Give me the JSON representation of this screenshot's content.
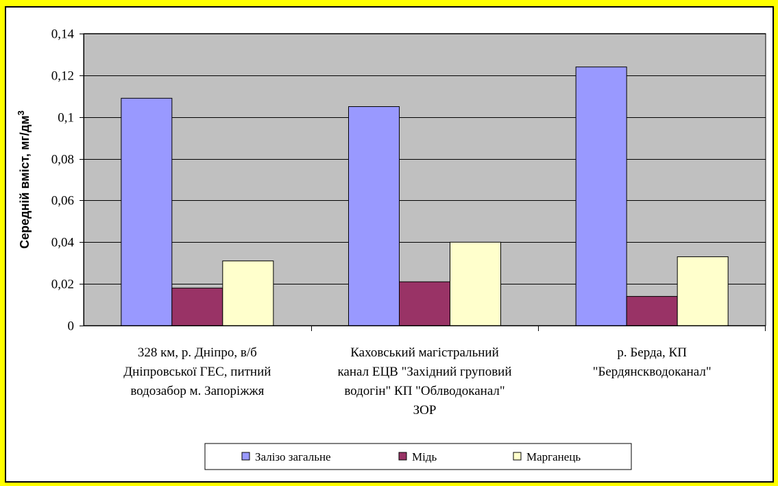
{
  "chart_data": {
    "type": "bar",
    "title": "",
    "xlabel": "",
    "ylabel": "Середній вміст, мг/дм",
    "ylabel_superscript": "3",
    "ylim": [
      0,
      0.14
    ],
    "yticks": [
      "0",
      "0,02",
      "0,04",
      "0,06",
      "0,08",
      "0,1",
      "0,12",
      "0,14"
    ],
    "grid": true,
    "legend_position": "bottom",
    "categories": [
      [
        "328 км, р. Дніпро, в/б",
        "Дніпровської ГЕС, питний",
        "водозабор м. Запоріжжя"
      ],
      [
        "Каховський магістральний",
        "канал ЕЦВ \"Західний груповий",
        "водогін\" КП \"Облводоканал\"",
        "ЗОР"
      ],
      [
        "р. Берда, КП",
        "\"Бердянскводоканал\""
      ]
    ],
    "series": [
      {
        "name": "Залізо загальне",
        "color": "#9999ff",
        "values": [
          0.109,
          0.105,
          0.124
        ]
      },
      {
        "name": "Мідь",
        "color": "#993366",
        "values": [
          0.018,
          0.021,
          0.014
        ]
      },
      {
        "name": "Марганець",
        "color": "#ffffcc",
        "values": [
          0.031,
          0.04,
          0.033
        ]
      }
    ],
    "colors": {
      "frame": "#ffff00",
      "plot_background": "#c0c0c0"
    }
  }
}
